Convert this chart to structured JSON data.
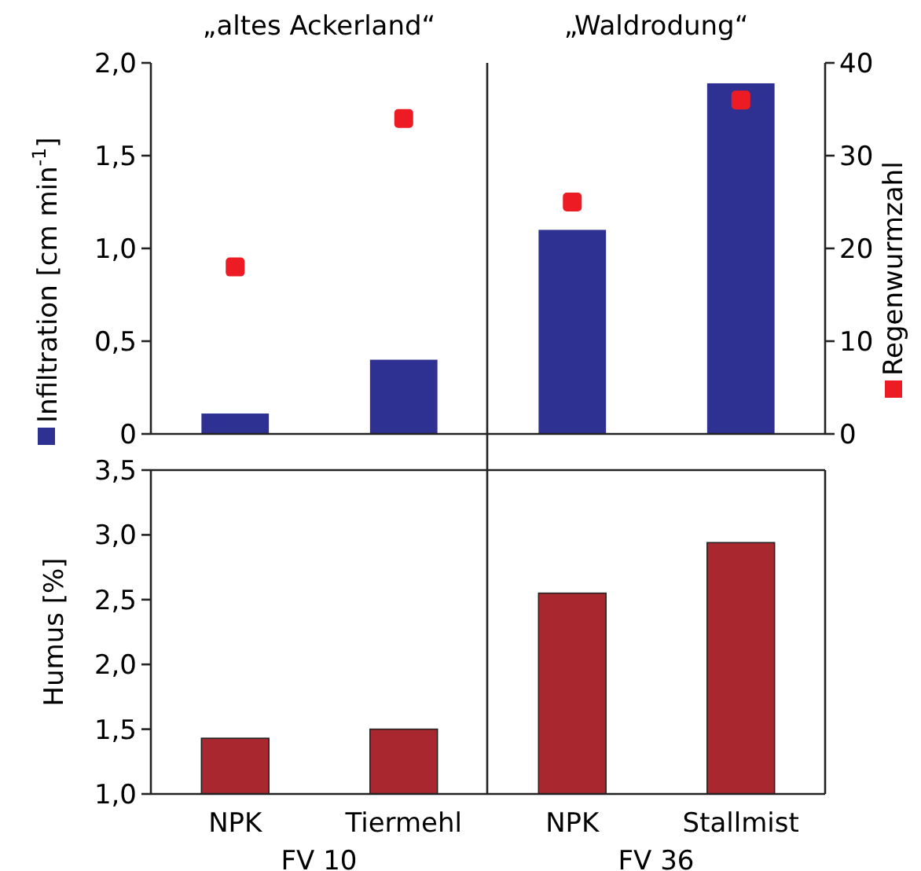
{
  "chart_data": [
    {
      "type": "bar",
      "categories": [
        null,
        null,
        null,
        null
      ],
      "tick_labels": "y",
      "ylabel": "Infiltration [cm min$^{-1}$]",
      "y2label": "Regenwurmzahl",
      "annotations": [
        "„altes Ackerland“",
        "„Waldrodung“"
      ],
      "series": [
        {
          "color": "#2e3192",
          "values": [
            0.11,
            0.4,
            1.1,
            1.89
          ]
        },
        {
          "type": "scatter",
          "axis": "y2",
          "marker": "square",
          "color": "#ed1c24",
          "values": [
            18,
            34,
            25,
            36
          ]
        }
      ],
      "ylim": [
        0,
        2
      ],
      "yticks": [
        {
          "value": 0,
          "label": "0"
        },
        {
          "value": 0.5,
          "label": "0,5"
        },
        {
          "value": 1,
          "label": "1,0"
        },
        {
          "value": 1.5,
          "label": "1,5"
        },
        {
          "value": 2,
          "label": "2,0"
        }
      ],
      "y2lim": [
        0,
        40
      ],
      "y2ticks": [
        0,
        10,
        20,
        30,
        40
      ]
    },
    {
      "type": "bar",
      "categories": [
        "NPK",
        "Tiermehl",
        "NPK",
        "Stallmist"
      ],
      "ylabel": "Humus [%]",
      "annotations": [
        "FV 10",
        "FV 36"
      ],
      "series": [
        {
          "color": "#a92830",
          "values": [
            1.43,
            1.5,
            2.55,
            2.94
          ]
        }
      ],
      "ylim": [
        1,
        3.5
      ],
      "yticks": [
        {
          "value": 1,
          "label": "1,0"
        },
        {
          "value": 1.5,
          "label": "1,5"
        },
        {
          "value": 2,
          "label": "2,0"
        },
        {
          "value": 2.5,
          "label": "2,5"
        },
        {
          "value": 3,
          "label": "3,0"
        },
        {
          "value": 3.5,
          "label": "3,5"
        }
      ]
    }
  ]
}
